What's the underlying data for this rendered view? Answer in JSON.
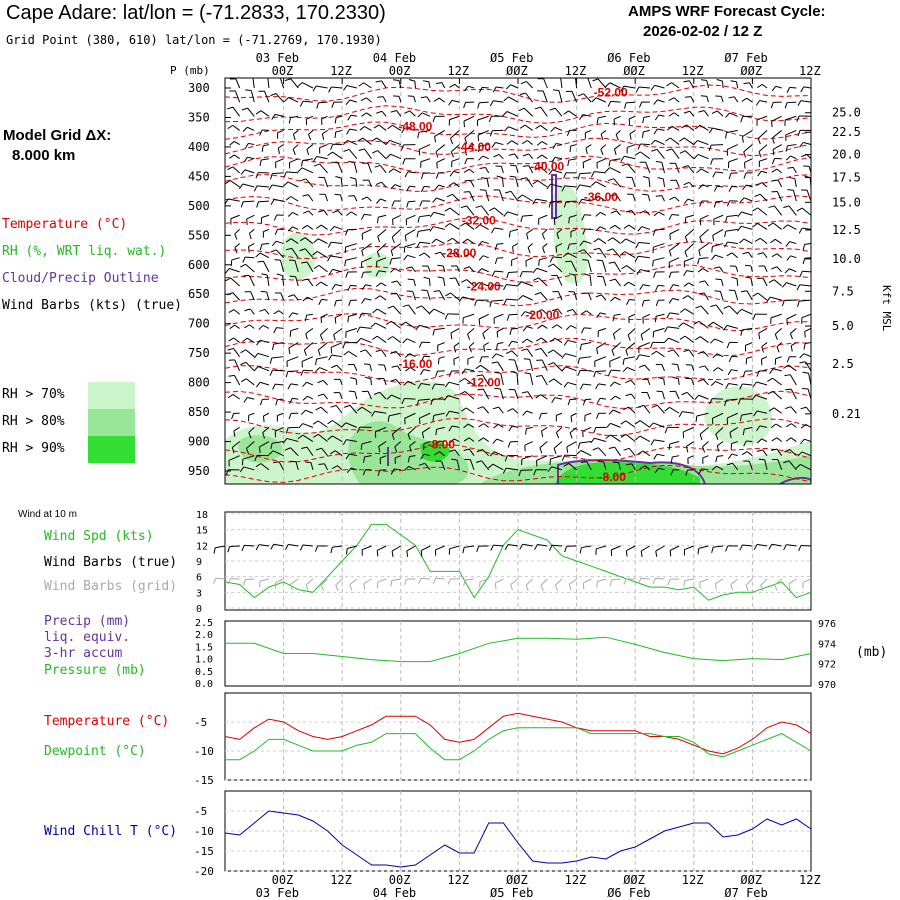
{
  "header": {
    "station": "Cape Adare:",
    "latlon_label": "lat/lon =",
    "latlon": "(-71.2833, 170.2330)",
    "gridpoint": "Grid Point (380, 610) lat/lon = (-71.2769, 170.1930)",
    "cycle_label": "AMPS WRF Forecast Cycle:",
    "cycle": "2026-02-02 / 12  Z"
  },
  "model_grid": {
    "label": "Model Grid ΔX:",
    "value": "8.000 km"
  },
  "legend": {
    "temperature": "Temperature (°C)",
    "rh": "RH (%, WRT liq. wat.)",
    "cloud": "Cloud/Precip Outline",
    "wind": "Wind Barbs (kts) (true)",
    "rh70": "RH > 70%",
    "rh80": "RH > 80%",
    "rh90": "RH > 90%"
  },
  "colors": {
    "temp": "#dd0000",
    "rh70": "#ccf5cc",
    "rh80": "#99e699",
    "rh90": "#33dd33",
    "cloud": "#663399",
    "green": "#22bb22",
    "gray": "#aaaaaa",
    "blue": "#0000aa"
  },
  "chart_data": [
    {
      "type": "heatmap",
      "title": "Cape Adare time-height section",
      "ylabel": "P (mb)",
      "y2label": "Kft MSL",
      "x_dates": [
        {
          "h": 12,
          "label": "03 Feb"
        },
        {
          "h": 36,
          "label": "04 Feb"
        },
        {
          "h": 60,
          "label": "Ø5 Feb"
        },
        {
          "h": 84,
          "label": "Ø6 Feb"
        },
        {
          "h": 108,
          "label": "Ø7 Feb"
        }
      ],
      "x_ticks": [
        {
          "h": 12,
          "label": "00Z"
        },
        {
          "h": 24,
          "label": "12Z"
        },
        {
          "h": 36,
          "label": "00Z"
        },
        {
          "h": 48,
          "label": "12Z"
        },
        {
          "h": 60,
          "label": "ØØZ"
        },
        {
          "h": 72,
          "label": "12Z"
        },
        {
          "h": 84,
          "label": "ØØZ"
        },
        {
          "h": 96,
          "label": "12Z"
        },
        {
          "h": 108,
          "label": "ØØZ"
        },
        {
          "h": 120,
          "label": "12Z"
        }
      ],
      "pressure_ticks": [
        "300",
        "350",
        "400",
        "450",
        "500",
        "550",
        "600",
        "650",
        "700",
        "750",
        "800",
        "850",
        "900",
        "950"
      ],
      "height_ticks": [
        {
          "p": 342,
          "label": "25.0"
        },
        {
          "p": 375,
          "label": "22.5"
        },
        {
          "p": 413,
          "label": "20.0"
        },
        {
          "p": 452,
          "label": "17.5"
        },
        {
          "p": 494,
          "label": "15.0"
        },
        {
          "p": 541,
          "label": "12.5"
        },
        {
          "p": 590,
          "label": "10.0"
        },
        {
          "p": 645,
          "label": "7.5"
        },
        {
          "p": 704,
          "label": "5.0"
        },
        {
          "p": 768,
          "label": "2.5"
        },
        {
          "p": 853,
          "label": "0.21"
        }
      ],
      "isotherm_labels": [
        {
          "h": 80,
          "p": 308,
          "label": "-52.00"
        },
        {
          "h": 40,
          "p": 365,
          "label": "-48.00"
        },
        {
          "h": 52,
          "p": 400,
          "label": "-44.00"
        },
        {
          "h": 67,
          "p": 433,
          "label": "-40.00"
        },
        {
          "h": 78,
          "p": 485,
          "label": "-36.00"
        },
        {
          "h": 53,
          "p": 525,
          "label": "-32.00"
        },
        {
          "h": 49,
          "p": 580,
          "label": "-28.00"
        },
        {
          "h": 54,
          "p": 637,
          "label": "-24.00"
        },
        {
          "h": 66,
          "p": 685,
          "label": "-20.00"
        },
        {
          "h": 40,
          "p": 768,
          "label": "-16.00"
        },
        {
          "h": 54,
          "p": 800,
          "label": "-12.00"
        },
        {
          "h": 46,
          "p": 905,
          "label": "-8.00"
        },
        {
          "h": 81,
          "p": 960,
          "label": "-8.00"
        }
      ]
    },
    {
      "type": "line",
      "title": "Wind at 10 m",
      "labels": [
        "Wind Spd (kts)",
        "Wind Barbs (true)",
        "Wind Barbs (grid)"
      ],
      "ylim": [
        0,
        18
      ],
      "yticks": [
        "0",
        "3",
        "6",
        "9",
        "12",
        "15",
        "18"
      ],
      "x": [
        0,
        3,
        6,
        9,
        12,
        15,
        18,
        21,
        24,
        27,
        30,
        33,
        36,
        39,
        42,
        45,
        48,
        51,
        54,
        57,
        60,
        63,
        66,
        69,
        72,
        75,
        78,
        81,
        84,
        87,
        90,
        93,
        96,
        99,
        102,
        105,
        108,
        111,
        114,
        117,
        120
      ],
      "series": [
        {
          "name": "Wind Spd (kts)",
          "values": [
            5,
            4.5,
            2,
            4,
            5,
            3.5,
            3,
            6,
            9,
            12,
            16,
            16,
            14,
            12,
            7,
            7,
            7,
            2,
            6,
            12,
            15,
            14,
            13,
            10,
            9,
            8,
            7,
            6,
            5,
            4,
            4,
            3.5,
            4,
            1.5,
            2.5,
            3,
            3,
            4,
            5,
            2,
            3
          ]
        }
      ]
    },
    {
      "type": "line",
      "title": "Precip / Pressure",
      "labels": [
        "Precip (mm)",
        "liq. equiv.",
        "3-hr accum",
        "Pressure (mb)"
      ],
      "yticks_left": [
        "0.0",
        "0.5",
        "1.0",
        "1.5",
        "2.0",
        "2.5"
      ],
      "yticks_right": [
        "970",
        "972",
        "974",
        "976"
      ],
      "pressure_ylim": [
        970,
        976
      ],
      "x": [
        0,
        6,
        12,
        18,
        24,
        30,
        36,
        42,
        48,
        54,
        60,
        66,
        72,
        78,
        84,
        90,
        96,
        102,
        108,
        114,
        120
      ],
      "series": [
        {
          "name": "Pressure (mb)",
          "values": [
            974.0,
            974.0,
            973.0,
            973.0,
            972.7,
            972.4,
            972.2,
            972.2,
            973.0,
            974.0,
            974.5,
            974.5,
            974.4,
            974.6,
            973.9,
            973.1,
            972.5,
            972.3,
            972.5,
            972.4,
            973.0
          ]
        }
      ]
    },
    {
      "type": "line",
      "title": "Temperature / Dewpoint",
      "labels": [
        "Temperature (°C)",
        "Dewpoint (°C)"
      ],
      "ylim": [
        -15,
        0
      ],
      "yticks": [
        "-5",
        "-10",
        "-15"
      ],
      "x": [
        0,
        3,
        6,
        9,
        12,
        15,
        18,
        21,
        24,
        27,
        30,
        33,
        36,
        39,
        42,
        45,
        48,
        51,
        54,
        57,
        60,
        63,
        66,
        69,
        72,
        75,
        78,
        81,
        84,
        87,
        90,
        93,
        96,
        99,
        102,
        105,
        108,
        111,
        114,
        117,
        120
      ],
      "series": [
        {
          "name": "Temperature (°C)",
          "values": [
            -7.5,
            -8,
            -6,
            -4.5,
            -5,
            -6.5,
            -7.5,
            -8,
            -7.5,
            -6.5,
            -5.5,
            -4,
            -4,
            -4,
            -5.5,
            -8,
            -8.5,
            -8,
            -6,
            -4,
            -3.5,
            -4,
            -4.5,
            -5,
            -6,
            -6.5,
            -6.5,
            -6.5,
            -6.5,
            -7.5,
            -7.5,
            -8,
            -9,
            -10,
            -10.5,
            -9.5,
            -8,
            -6,
            -5,
            -5.5,
            -7
          ]
        },
        {
          "name": "Dewpoint (°C)",
          "values": [
            -11.5,
            -11.5,
            -10,
            -8,
            -8,
            -9,
            -10,
            -10,
            -10,
            -9,
            -8.5,
            -7,
            -7,
            -7,
            -9.5,
            -11.5,
            -11.5,
            -10,
            -8,
            -6.5,
            -6,
            -6,
            -6,
            -6,
            -6,
            -7,
            -7,
            -7,
            -7,
            -7,
            -7.5,
            -7.5,
            -8.5,
            -10.5,
            -11,
            -10,
            -9,
            -8,
            -7,
            -8.5,
            -10
          ]
        }
      ]
    },
    {
      "type": "line",
      "title": "Wind Chill",
      "labels": [
        "Wind Chill T (°C)"
      ],
      "ylim": [
        -20,
        0
      ],
      "yticks": [
        "-5",
        "-10",
        "-15",
        "-20"
      ],
      "x": [
        0,
        3,
        6,
        9,
        12,
        15,
        18,
        21,
        24,
        27,
        30,
        33,
        36,
        39,
        42,
        45,
        48,
        51,
        54,
        57,
        60,
        63,
        66,
        69,
        72,
        75,
        78,
        81,
        84,
        87,
        90,
        93,
        96,
        99,
        102,
        105,
        108,
        111,
        114,
        117,
        120
      ],
      "series": [
        {
          "name": "Wind Chill T (°C)",
          "values": [
            -10.5,
            -11,
            -8,
            -5,
            -5.5,
            -6,
            -7.5,
            -10,
            -13.5,
            -16,
            -18.5,
            -18.5,
            -19,
            -18.5,
            -16,
            -13.5,
            -15.5,
            -15.5,
            -8,
            -8,
            -13,
            -17.5,
            -18,
            -18,
            -17.5,
            -16.5,
            -17,
            -15,
            -14,
            -12,
            -10,
            -9,
            -8,
            -8,
            -11.5,
            -11,
            -9.5,
            -7,
            -8.5,
            -7,
            -9.5
          ]
        }
      ]
    }
  ],
  "bottom_axis": {
    "ticks": [
      "00Z",
      "12Z",
      "00Z",
      "12Z",
      "ØØZ",
      "12Z",
      "ØØZ",
      "12Z",
      "ØØZ",
      "12Z"
    ],
    "dates": [
      "03 Feb",
      "04 Feb",
      "Ø5 Feb",
      "Ø6 Feb",
      "Ø7 Feb"
    ]
  },
  "panel_small_label": "Wind at 10 m",
  "pressure_unit": "(mb)"
}
